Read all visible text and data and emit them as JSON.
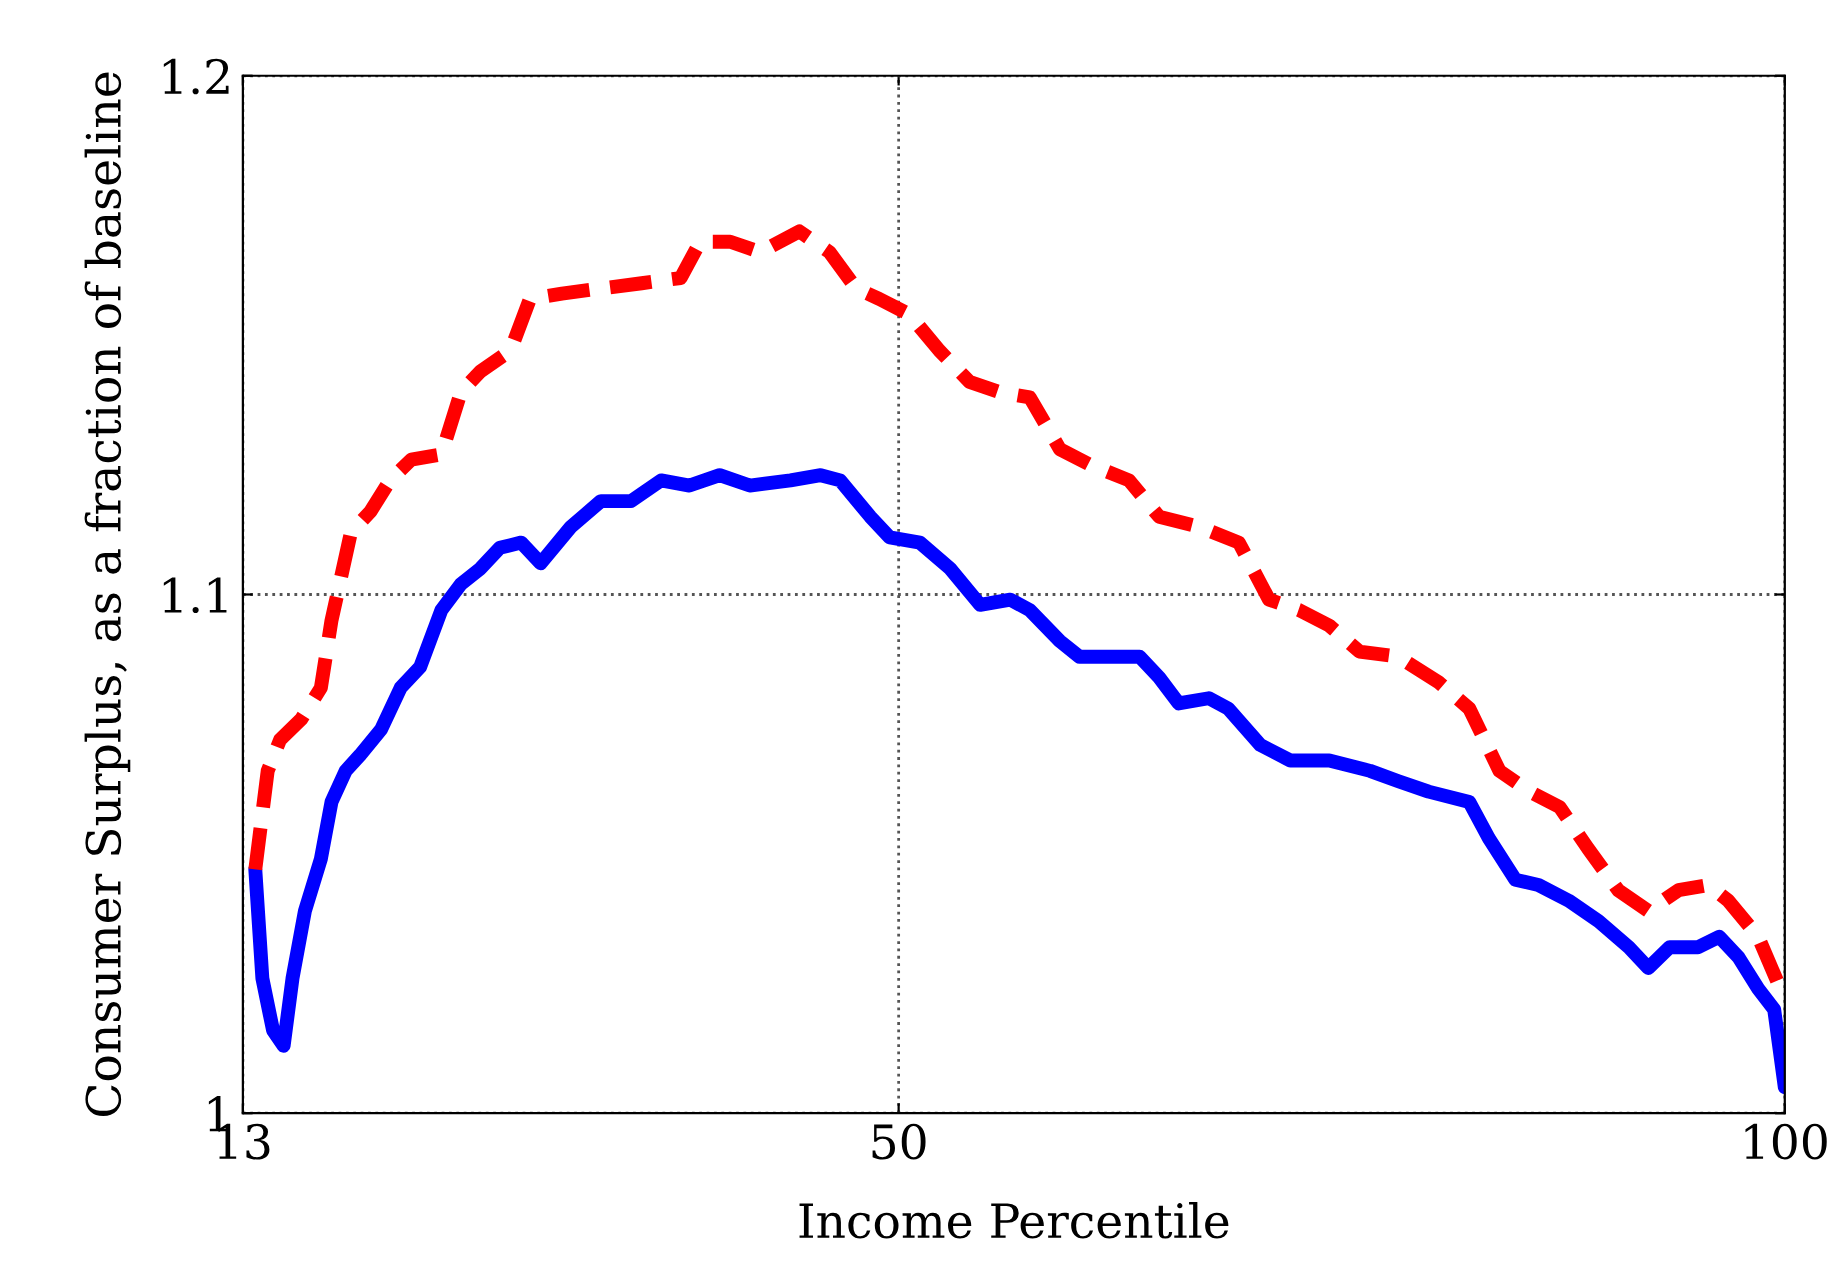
{
  "chart_data": {
    "type": "line",
    "xlabel": "Income Percentile",
    "ylabel": "Consumer Surplus, as a fraction of baseline",
    "xlim": [
      13,
      100
    ],
    "ylim": [
      1,
      1.2
    ],
    "xticks": [
      13,
      50,
      100
    ],
    "yticks": [
      1,
      1.1,
      1.2
    ],
    "grid": true,
    "series": [
      {
        "color": "#0000ff",
        "line_style": "solid",
        "x": [
          13.7,
          14.1,
          14.7,
          15.3,
          15.8,
          16.5,
          17.4,
          18.0,
          18.8,
          19.6,
          20.8,
          21.9,
          23.0,
          24.2,
          25.3,
          26.4,
          27.5,
          28.7,
          29.8,
          31.5,
          33.2,
          34.9,
          36.6,
          38.2,
          39.9,
          41.6,
          43.9,
          45.6,
          46.7,
          48.4,
          49.5,
          51.2,
          52.9,
          54.6,
          56.3,
          57.4,
          59.1,
          60.2,
          61.9,
          63.6,
          64.7,
          65.8,
          67.5,
          68.6,
          70.4,
          72.1,
          74.3,
          76.6,
          78.2,
          79.9,
          82.2,
          83.3,
          84.8,
          86.1,
          87.8,
          89.5,
          91.2,
          92.3,
          93.5,
          95.1,
          96.3,
          97.4,
          98.5,
          99.4,
          100
        ],
        "values": [
          1.047,
          1.026,
          1.016,
          1.013,
          1.026,
          1.039,
          1.049,
          1.06,
          1.066,
          1.069,
          1.074,
          1.082,
          1.086,
          1.097,
          1.102,
          1.105,
          1.109,
          1.11,
          1.106,
          1.113,
          1.118,
          1.118,
          1.122,
          1.121,
          1.123,
          1.121,
          1.122,
          1.123,
          1.122,
          1.115,
          1.111,
          1.11,
          1.105,
          1.098,
          1.099,
          1.097,
          1.091,
          1.088,
          1.088,
          1.088,
          1.084,
          1.079,
          1.08,
          1.078,
          1.071,
          1.068,
          1.068,
          1.066,
          1.064,
          1.062,
          1.06,
          1.053,
          1.045,
          1.044,
          1.041,
          1.037,
          1.032,
          1.028,
          1.032,
          1.032,
          1.034,
          1.03,
          1.024,
          1.02,
          1.005
        ]
      },
      {
        "color": "#ff0000",
        "line_style": "dashed",
        "x": [
          13.7,
          14.4,
          15.1,
          16.3,
          17.4,
          18.0,
          19.1,
          20.2,
          21.3,
          22.5,
          24.2,
          25.3,
          26.4,
          28.1,
          29.2,
          31.0,
          33.2,
          35.5,
          37.7,
          38.8,
          40.5,
          42.2,
          44.4,
          46.1,
          47.6,
          48.9,
          50.6,
          52.3,
          54.0,
          55.7,
          57.4,
          59.1,
          60.8,
          63.0,
          64.7,
          67.0,
          69.2,
          70.9,
          72.6,
          74.3,
          76.0,
          78.2,
          80.5,
          82.2,
          83.9,
          85.6,
          87.3,
          88.9,
          90.6,
          92.3,
          94.0,
          95.7,
          96.8,
          98.5,
          100
        ],
        "values": [
          1.047,
          1.066,
          1.072,
          1.076,
          1.082,
          1.095,
          1.112,
          1.116,
          1.122,
          1.126,
          1.127,
          1.139,
          1.143,
          1.147,
          1.157,
          1.158,
          1.159,
          1.16,
          1.161,
          1.168,
          1.168,
          1.166,
          1.17,
          1.166,
          1.159,
          1.157,
          1.154,
          1.147,
          1.141,
          1.139,
          1.138,
          1.128,
          1.125,
          1.122,
          1.115,
          1.113,
          1.11,
          1.099,
          1.097,
          1.094,
          1.089,
          1.088,
          1.083,
          1.078,
          1.066,
          1.062,
          1.059,
          1.051,
          1.043,
          1.039,
          1.043,
          1.044,
          1.041,
          1.034,
          1.022
        ]
      }
    ]
  }
}
